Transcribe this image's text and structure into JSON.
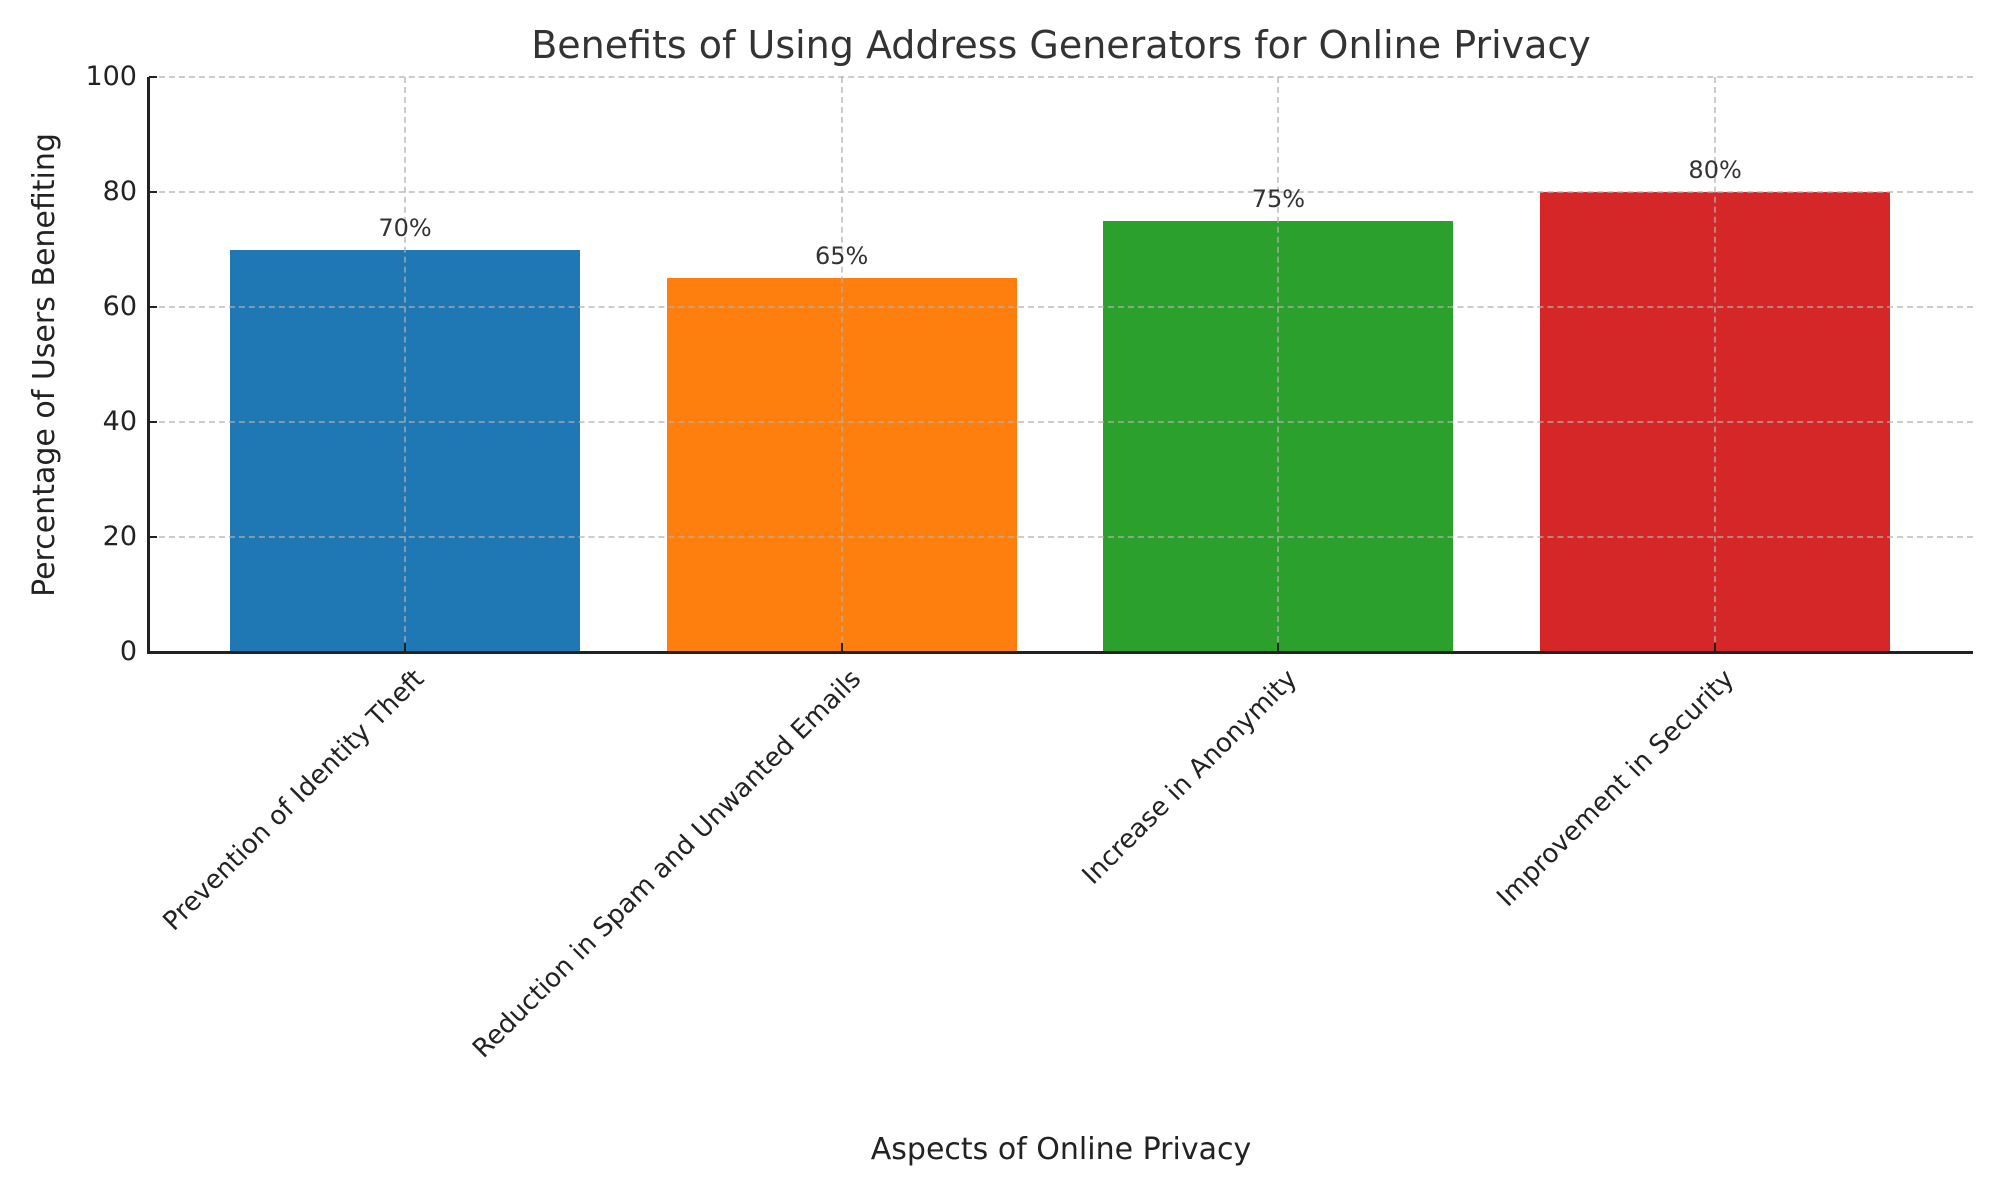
{
  "chart_data": {
    "type": "bar",
    "title": "Benefits of Using Address Generators for Online Privacy",
    "xlabel": "Aspects of Online Privacy",
    "ylabel": "Percentage of Users Benefiting",
    "categories": [
      "Prevention of Identity Theft",
      "Reduction in Spam and Unwanted Emails",
      "Increase in Anonymity",
      "Improvement in Security"
    ],
    "values": [
      70,
      65,
      75,
      80
    ],
    "value_labels": [
      "70%",
      "65%",
      "75%",
      "80%"
    ],
    "colors": [
      "#1f77b4",
      "#ff7f0e",
      "#2ca02c",
      "#d62728"
    ],
    "ylim": [
      0,
      100
    ],
    "yticks": [
      0,
      20,
      40,
      60,
      80,
      100
    ],
    "ytick_labels": [
      "0",
      "20",
      "40",
      "60",
      "80",
      "100"
    ],
    "xtick_rotation": 45,
    "grid": true,
    "grid_style": "dashed",
    "legend": null
  }
}
